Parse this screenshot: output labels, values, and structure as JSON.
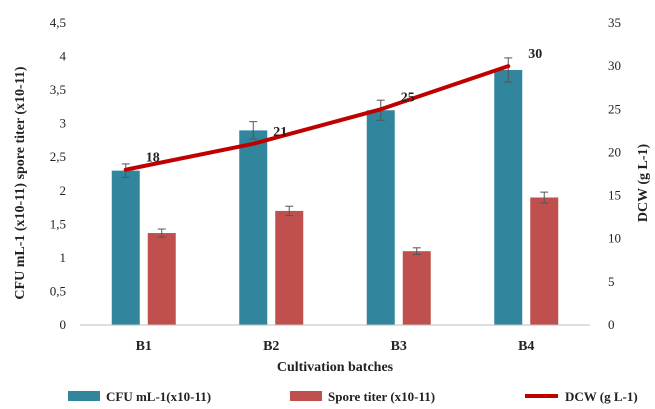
{
  "chart_data": {
    "type": "bar",
    "categories": [
      "B1",
      "B2",
      "B3",
      "B4"
    ],
    "xlabel": "Cultivation batches",
    "ylabel_left": "CFU mL-1 (x10-11) spore titer (x10-11)",
    "ylabel_right": "DCW (g L-1)",
    "ylim_left": [
      0,
      4.5
    ],
    "yticks_left": [
      "0",
      "0,5",
      "1",
      "1,5",
      "2",
      "2,5",
      "3",
      "3,5",
      "4",
      "4,5"
    ],
    "ylim_right": [
      0,
      35
    ],
    "yticks_right": [
      "0",
      "5",
      "10",
      "15",
      "20",
      "25",
      "30",
      "35"
    ],
    "grid": false,
    "legend_position": "bottom",
    "series": [
      {
        "name": "CFU mL-1(x10-11)",
        "type": "bar",
        "axis": "left",
        "color": "#31859C",
        "values": [
          2.3,
          2.9,
          3.2,
          3.8
        ],
        "errors": [
          0.1,
          0.13,
          0.15,
          0.18
        ]
      },
      {
        "name": "Spore titer (x10-11)",
        "type": "bar",
        "axis": "left",
        "color": "#C0504D",
        "values": [
          1.37,
          1.7,
          1.1,
          1.9
        ],
        "errors": [
          0.06,
          0.07,
          0.05,
          0.08
        ]
      },
      {
        "name": "DCW (g L-1)",
        "type": "line",
        "axis": "right",
        "color": "#C00000",
        "values": [
          18,
          21,
          25,
          30
        ],
        "labels": [
          "18",
          "21",
          "25",
          "30"
        ]
      }
    ]
  }
}
